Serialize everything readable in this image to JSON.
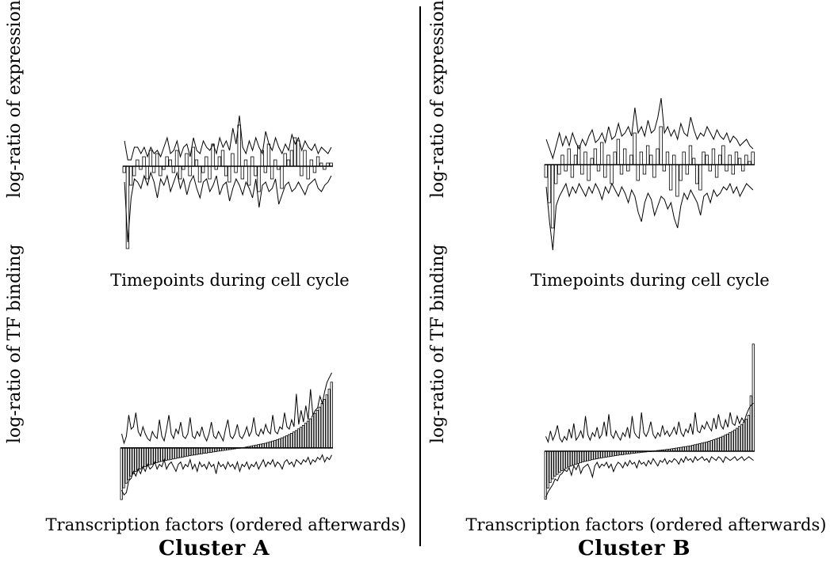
{
  "chart_data": [
    {
      "type": "bar",
      "panel": "Cluster A - expression",
      "title": "Cluster A",
      "xlabel": "Timepoints during cell cycle",
      "ylabel": "log-ratio of expression",
      "n": 64,
      "ylim": [
        -3,
        2
      ],
      "values": [
        -0.2,
        -2.6,
        -0.6,
        -0.3,
        0.2,
        -0.1,
        0.3,
        -0.4,
        0.5,
        -0.2,
        0.4,
        -0.3,
        -0.1,
        0.3,
        0.2,
        -0.2,
        0.5,
        -0.4,
        -0.1,
        0.4,
        -0.3,
        0.6,
        0.2,
        -0.5,
        -0.2,
        0.3,
        -0.4,
        0.7,
        -0.1,
        0.3,
        0.5,
        -0.3,
        -0.5,
        0.4,
        -0.2,
        1.3,
        -0.4,
        0.2,
        -0.6,
        0.3,
        -0.3,
        -0.8,
        0.5,
        -0.2,
        0.7,
        -0.4,
        0.2,
        -0.1,
        -0.7,
        0.4,
        0.2,
        0.5,
        0.9,
        0.8,
        -0.3,
        0.5,
        -0.4,
        0.2,
        -0.2,
        0.3,
        0.1,
        -0.1,
        0.1,
        0.1
      ],
      "upper": [
        0.8,
        0.2,
        0.2,
        0.6,
        0.6,
        0.4,
        0.6,
        0.3,
        0.6,
        0.4,
        0.5,
        0.3,
        0.6,
        0.9,
        0.4,
        0.5,
        0.8,
        0.3,
        0.6,
        0.7,
        0.3,
        0.9,
        0.5,
        0.4,
        0.8,
        0.6,
        0.5,
        0.7,
        0.4,
        0.9,
        0.6,
        0.8,
        0.5,
        1.2,
        0.7,
        1.6,
        0.6,
        0.4,
        0.8,
        0.5,
        0.9,
        0.6,
        0.4,
        1.1,
        0.7,
        0.5,
        0.9,
        0.6,
        0.4,
        0.7,
        0.5,
        1.0,
        0.7,
        0.9,
        0.5,
        0.8,
        0.6,
        0.5,
        0.7,
        0.4,
        0.6,
        0.5,
        0.4,
        0.6
      ],
      "lower": [
        -0.5,
        -2.4,
        -1.0,
        -0.4,
        -0.5,
        -0.7,
        -0.3,
        -0.6,
        -0.2,
        -0.5,
        -1.0,
        -0.4,
        -0.6,
        -0.3,
        -0.8,
        -0.5,
        -0.2,
        -0.7,
        -0.4,
        -0.9,
        -0.5,
        -0.3,
        -0.7,
        -1.0,
        -0.5,
        -0.4,
        -0.8,
        -0.6,
        -0.3,
        -0.9,
        -0.6,
        -0.5,
        -1.1,
        -0.7,
        -0.4,
        -0.6,
        -0.9,
        -0.5,
        -0.7,
        -1.0,
        -0.4,
        -1.3,
        -0.6,
        -0.5,
        -0.8,
        -0.7,
        -0.4,
        -1.2,
        -0.9,
        -0.6,
        -0.5,
        -0.8,
        -0.7,
        -0.5,
        -0.7,
        -0.9,
        -0.6,
        -0.5,
        -0.4,
        -0.7,
        -0.8,
        -0.6,
        -0.5,
        -0.3
      ]
    },
    {
      "type": "bar",
      "panel": "Cluster A - TF binding",
      "title": "Cluster A",
      "xlabel": "Transcription factors (ordered afterwards)",
      "ylabel": "log-ratio of TF binding",
      "n": 90,
      "ylim": [
        -2.5,
        3.5
      ],
      "values": [
        -2.2,
        -1.7,
        -1.5,
        -1.35,
        -1.2,
        -1.1,
        -1.0,
        -0.95,
        -0.9,
        -0.85,
        -0.8,
        -0.76,
        -0.72,
        -0.69,
        -0.66,
        -0.63,
        -0.6,
        -0.57,
        -0.55,
        -0.53,
        -0.51,
        -0.49,
        -0.47,
        -0.45,
        -0.43,
        -0.41,
        -0.39,
        -0.37,
        -0.35,
        -0.33,
        -0.31,
        -0.3,
        -0.28,
        -0.26,
        -0.25,
        -0.23,
        -0.22,
        -0.2,
        -0.19,
        -0.17,
        -0.16,
        -0.14,
        -0.13,
        -0.11,
        -0.1,
        -0.08,
        -0.07,
        -0.05,
        -0.04,
        -0.02,
        -0.01,
        0.01,
        0.02,
        0.04,
        0.06,
        0.08,
        0.1,
        0.12,
        0.14,
        0.16,
        0.18,
        0.2,
        0.23,
        0.26,
        0.29,
        0.32,
        0.35,
        0.39,
        0.43,
        0.47,
        0.52,
        0.57,
        0.62,
        0.68,
        0.74,
        0.81,
        0.88,
        0.96,
        1.05,
        1.14,
        1.24,
        1.35,
        1.47,
        1.6,
        1.74,
        1.9,
        2.07,
        2.26,
        2.5,
        2.8
      ],
      "upper": [
        0.6,
        0.2,
        0.5,
        1.4,
        0.8,
        0.9,
        1.5,
        0.7,
        0.5,
        0.9,
        0.6,
        0.4,
        0.3,
        0.7,
        0.5,
        0.4,
        1.2,
        0.5,
        0.3,
        0.8,
        1.4,
        0.6,
        0.4,
        0.8,
        0.6,
        1.1,
        0.5,
        0.4,
        0.6,
        1.3,
        0.5,
        0.4,
        0.7,
        0.5,
        0.9,
        0.5,
        0.3,
        0.6,
        1.1,
        0.5,
        0.4,
        0.7,
        0.5,
        0.3,
        0.8,
        1.2,
        0.5,
        0.4,
        0.6,
        1.0,
        0.5,
        0.4,
        0.6,
        0.9,
        0.5,
        0.7,
        1.3,
        0.6,
        0.5,
        0.8,
        0.6,
        1.0,
        0.7,
        0.6,
        1.4,
        0.7,
        0.6,
        0.9,
        0.8,
        1.5,
        0.9,
        0.8,
        1.2,
        0.9,
        2.3,
        1.0,
        1.6,
        1.1,
        1.8,
        1.2,
        2.5,
        1.4,
        1.6,
        1.7,
        2.2,
        1.9,
        2.4,
        2.8,
        3.0,
        3.2
      ],
      "lower": [
        -1.8,
        -2.0,
        -1.9,
        -1.4,
        -1.3,
        -1.0,
        -1.2,
        -0.9,
        -1.1,
        -0.8,
        -1.0,
        -0.7,
        -0.9,
        -0.8,
        -0.6,
        -0.9,
        -0.7,
        -0.8,
        -0.5,
        -0.9,
        -0.7,
        -0.6,
        -0.8,
        -1.0,
        -0.7,
        -0.6,
        -0.9,
        -0.7,
        -0.8,
        -0.5,
        -0.9,
        -0.7,
        -1.0,
        -0.6,
        -0.8,
        -0.7,
        -0.9,
        -0.6,
        -0.8,
        -0.7,
        -1.1,
        -0.6,
        -0.8,
        -0.7,
        -0.9,
        -0.6,
        -0.8,
        -0.7,
        -0.9,
        -0.6,
        -1.0,
        -0.7,
        -0.8,
        -0.6,
        -0.9,
        -0.7,
        -0.8,
        -0.6,
        -0.9,
        -0.7,
        -0.5,
        -0.8,
        -0.6,
        -0.7,
        -0.5,
        -0.8,
        -0.6,
        -0.7,
        -0.9,
        -0.6,
        -0.5,
        -0.7,
        -0.6,
        -0.8,
        -0.5,
        -0.6,
        -0.7,
        -0.5,
        -0.6,
        -0.4,
        -0.7,
        -0.5,
        -0.6,
        -0.4,
        -0.5,
        -0.3,
        -0.6,
        -0.4,
        -0.5,
        -0.3
      ]
    },
    {
      "type": "bar",
      "panel": "Cluster B - expression",
      "title": "Cluster B",
      "xlabel": "Timepoints during cell cycle",
      "ylabel": "log-ratio of expression",
      "n": 64,
      "ylim": [
        -3,
        2
      ],
      "values": [
        -0.4,
        -1.2,
        -2.0,
        -0.6,
        -0.3,
        0.3,
        -0.2,
        0.5,
        -0.4,
        0.3,
        0.6,
        -0.3,
        0.4,
        -0.5,
        0.2,
        0.5,
        -0.2,
        0.7,
        -0.4,
        0.3,
        -0.6,
        0.4,
        0.8,
        -0.3,
        0.5,
        -0.2,
        0.3,
        1.0,
        -0.5,
        0.4,
        -0.3,
        0.6,
        0.3,
        -0.4,
        0.5,
        1.2,
        -0.2,
        0.4,
        -0.8,
        0.3,
        -1.0,
        -0.5,
        0.4,
        -0.3,
        0.6,
        0.2,
        -0.6,
        -0.8,
        0.4,
        0.3,
        -0.2,
        0.5,
        -0.4,
        0.3,
        0.6,
        -0.2,
        0.3,
        -0.3,
        0.4,
        0.2,
        -0.2,
        0.3,
        0.1,
        0.4
      ],
      "upper": [
        0.8,
        0.5,
        0.2,
        0.6,
        1.0,
        0.6,
        0.9,
        0.6,
        1.0,
        0.7,
        0.5,
        0.8,
        0.6,
        0.9,
        1.1,
        0.7,
        0.8,
        1.0,
        0.7,
        1.2,
        0.8,
        0.9,
        1.3,
        0.9,
        1.0,
        1.2,
        0.9,
        1.8,
        1.0,
        1.2,
        0.9,
        1.4,
        1.0,
        1.1,
        1.5,
        2.1,
        1.0,
        1.2,
        0.9,
        1.1,
        0.8,
        1.3,
        1.0,
        0.9,
        1.5,
        1.1,
        0.8,
        1.0,
        0.9,
        1.2,
        1.0,
        0.8,
        1.1,
        0.9,
        0.8,
        1.0,
        0.7,
        0.9,
        0.8,
        0.6,
        0.7,
        0.8,
        0.6,
        0.5
      ],
      "lower": [
        -0.7,
        -1.8,
        -2.7,
        -1.3,
        -1.0,
        -0.8,
        -0.6,
        -1.0,
        -0.7,
        -0.9,
        -0.6,
        -0.8,
        -1.0,
        -0.7,
        -0.9,
        -0.6,
        -0.8,
        -1.1,
        -0.7,
        -0.9,
        -0.6,
        -0.8,
        -1.0,
        -0.7,
        -0.9,
        -1.2,
        -0.8,
        -1.0,
        -1.5,
        -1.8,
        -1.2,
        -0.9,
        -1.1,
        -1.6,
        -1.3,
        -1.0,
        -1.1,
        -1.4,
        -1.2,
        -1.7,
        -2.0,
        -1.3,
        -0.9,
        -1.1,
        -0.8,
        -1.0,
        -1.2,
        -1.6,
        -1.0,
        -0.9,
        -1.2,
        -0.8,
        -1.0,
        -0.9,
        -0.7,
        -0.8,
        -0.6,
        -0.9,
        -0.7,
        -1.0,
        -0.8,
        -0.6,
        -0.7,
        -0.8
      ]
    },
    {
      "type": "bar",
      "panel": "Cluster B - TF binding",
      "title": "Cluster B",
      "xlabel": "Transcription factors (ordered afterwards)",
      "ylabel": "log-ratio of TF binding",
      "n": 90,
      "ylim": [
        -3,
        6
      ],
      "values": [
        -2.6,
        -2.0,
        -1.7,
        -1.5,
        -1.35,
        -1.25,
        -1.15,
        -1.05,
        -0.98,
        -0.91,
        -0.85,
        -0.8,
        -0.75,
        -0.7,
        -0.66,
        -0.62,
        -0.58,
        -0.55,
        -0.52,
        -0.49,
        -0.46,
        -0.43,
        -0.41,
        -0.38,
        -0.36,
        -0.34,
        -0.32,
        -0.3,
        -0.28,
        -0.26,
        -0.24,
        -0.22,
        -0.2,
        -0.19,
        -0.17,
        -0.15,
        -0.14,
        -0.12,
        -0.11,
        -0.09,
        -0.08,
        -0.06,
        -0.05,
        -0.04,
        -0.02,
        -0.01,
        0.01,
        0.02,
        0.04,
        0.05,
        0.07,
        0.08,
        0.1,
        0.11,
        0.13,
        0.15,
        0.17,
        0.19,
        0.21,
        0.23,
        0.25,
        0.27,
        0.29,
        0.32,
        0.35,
        0.38,
        0.41,
        0.44,
        0.47,
        0.5,
        0.54,
        0.58,
        0.62,
        0.66,
        0.71,
        0.76,
        0.81,
        0.87,
        0.93,
        1.0,
        1.07,
        1.15,
        1.24,
        1.34,
        1.45,
        1.58,
        1.73,
        1.95,
        3.0,
        5.8
      ],
      "upper": [
        0.8,
        0.5,
        1.1,
        0.6,
        0.9,
        1.4,
        0.7,
        0.5,
        0.8,
        0.6,
        1.2,
        0.7,
        1.5,
        0.6,
        0.8,
        1.1,
        0.7,
        1.9,
        0.9,
        0.6,
        1.0,
        0.8,
        1.3,
        0.7,
        0.9,
        1.6,
        0.8,
        2.0,
        0.9,
        0.7,
        1.1,
        0.8,
        0.6,
        1.0,
        0.8,
        1.3,
        0.7,
        1.9,
        1.0,
        0.8,
        0.7,
        2.1,
        1.0,
        0.8,
        1.1,
        1.6,
        0.9,
        0.7,
        1.0,
        0.8,
        1.4,
        0.9,
        1.1,
        0.8,
        1.0,
        1.3,
        0.9,
        1.6,
        1.0,
        0.8,
        1.2,
        1.0,
        1.5,
        0.9,
        2.1,
        1.1,
        1.0,
        1.4,
        1.2,
        1.6,
        1.3,
        1.1,
        1.8,
        1.2,
        2.0,
        1.4,
        1.2,
        1.7,
        1.3,
        2.1,
        1.5,
        1.4,
        1.9,
        1.5,
        1.8,
        1.6,
        2.0,
        2.3,
        2.5,
        2.6
      ],
      "lower": [
        -2.5,
        -2.2,
        -2.0,
        -1.8,
        -1.5,
        -1.6,
        -1.3,
        -1.2,
        -1.0,
        -1.1,
        -0.9,
        -1.3,
        -0.8,
        -1.0,
        -0.7,
        -1.2,
        -0.9,
        -0.8,
        -0.7,
        -1.0,
        -1.4,
        -0.8,
        -0.6,
        -0.9,
        -0.7,
        -0.8,
        -0.6,
        -0.9,
        -0.7,
        -1.1,
        -0.8,
        -0.6,
        -0.7,
        -0.9,
        -0.6,
        -0.8,
        -0.5,
        -0.7,
        -0.6,
        -0.9,
        -0.5,
        -0.7,
        -0.6,
        -0.8,
        -0.5,
        -0.7,
        -0.4,
        -0.6,
        -0.8,
        -0.5,
        -0.6,
        -0.4,
        -0.7,
        -0.5,
        -0.6,
        -0.4,
        -0.5,
        -0.7,
        -0.4,
        -0.6,
        -0.3,
        -0.5,
        -0.4,
        -0.6,
        -0.3,
        -0.5,
        -0.4,
        -0.3,
        -0.5,
        -0.4,
        -0.6,
        -0.3,
        -0.4,
        -0.5,
        -0.3,
        -0.4,
        -0.6,
        -0.3,
        -0.4,
        -0.5,
        -0.4,
        -0.3,
        -0.5,
        -0.4,
        -0.3,
        -0.5,
        -0.4,
        -0.3,
        -0.4,
        -0.5
      ]
    }
  ],
  "panels": {
    "a": {
      "title": "Cluster A",
      "top_ylabel": "log-ratio of expression",
      "top_xlabel": "Timepoints during cell cycle",
      "bottom_ylabel": "log-ratio of TF binding",
      "bottom_xlabel": "Transcription factors (ordered afterwards)"
    },
    "b": {
      "title": "Cluster B",
      "top_ylabel": "log-ratio of expression",
      "top_xlabel": "Timepoints during cell cycle",
      "bottom_ylabel": "log-ratio of TF binding",
      "bottom_xlabel": "Transcription factors (ordered afterwards)"
    }
  },
  "colors": {
    "ink": "#000000",
    "background": "#ffffff"
  }
}
